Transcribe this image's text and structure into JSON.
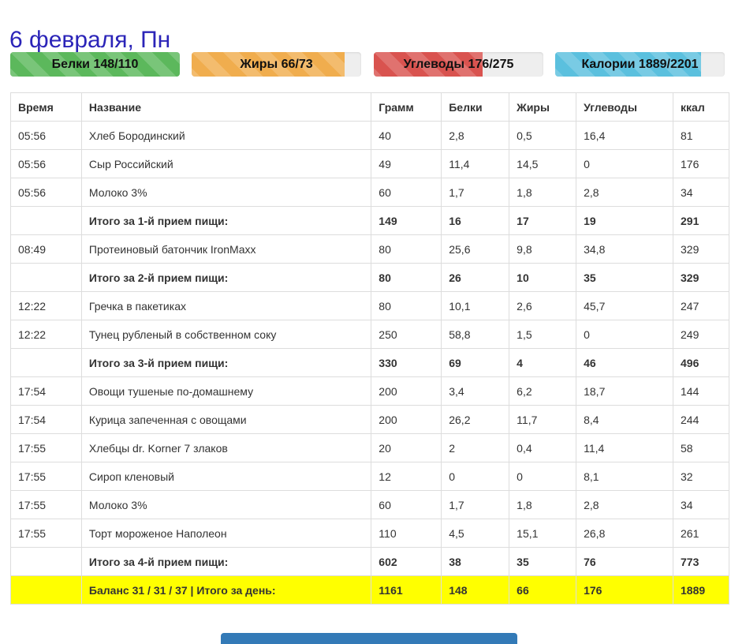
{
  "page": {
    "title": "6 февраля, Пн"
  },
  "progress": [
    {
      "label": "Белки 148/110",
      "fill": 100,
      "color": "#5cb85c"
    },
    {
      "label": "Жиры 66/73",
      "fill": 90,
      "color": "#f0ad4e"
    },
    {
      "label": "Углеводы 176/275",
      "fill": 64,
      "color": "#d9534f"
    },
    {
      "label": "Калории 1889/2201",
      "fill": 86,
      "color": "#5bc0de"
    }
  ],
  "table": {
    "headers": [
      "Время",
      "Название",
      "Грамм",
      "Белки",
      "Жиры",
      "Углеводы",
      "ккал"
    ],
    "rows": [
      {
        "type": "item",
        "cells": [
          "05:56",
          "Хлеб Бородинский",
          "40",
          "2,8",
          "0,5",
          "16,4",
          "81"
        ]
      },
      {
        "type": "item",
        "cells": [
          "05:56",
          "Сыр Российский",
          "49",
          "11,4",
          "14,5",
          "0",
          "176"
        ]
      },
      {
        "type": "item",
        "cells": [
          "05:56",
          "Молоко 3%",
          "60",
          "1,7",
          "1,8",
          "2,8",
          "34"
        ]
      },
      {
        "type": "total",
        "cells": [
          "",
          "Итого за 1-й прием пищи:",
          "149",
          "16",
          "17",
          "19",
          "291"
        ]
      },
      {
        "type": "item",
        "cells": [
          "08:49",
          "Протеиновый батончик IronMaxx",
          "80",
          "25,6",
          "9,8",
          "34,8",
          "329"
        ]
      },
      {
        "type": "total",
        "cells": [
          "",
          "Итого за 2-й прием пищи:",
          "80",
          "26",
          "10",
          "35",
          "329"
        ]
      },
      {
        "type": "item",
        "cells": [
          "12:22",
          "Гречка в пакетиках",
          "80",
          "10,1",
          "2,6",
          "45,7",
          "247"
        ]
      },
      {
        "type": "item",
        "cells": [
          "12:22",
          "Тунец рубленый в собственном соку",
          "250",
          "58,8",
          "1,5",
          "0",
          "249"
        ]
      },
      {
        "type": "total",
        "cells": [
          "",
          "Итого за 3-й прием пищи:",
          "330",
          "69",
          "4",
          "46",
          "496"
        ]
      },
      {
        "type": "item",
        "cells": [
          "17:54",
          "Овощи тушеные по-домашнему",
          "200",
          "3,4",
          "6,2",
          "18,7",
          "144"
        ]
      },
      {
        "type": "item",
        "cells": [
          "17:54",
          "Курица запеченная с овощами",
          "200",
          "26,2",
          "11,7",
          "8,4",
          "244"
        ]
      },
      {
        "type": "item",
        "cells": [
          "17:55",
          "Хлебцы dr. Korner 7 злаков",
          "20",
          "2",
          "0,4",
          "11,4",
          "58"
        ]
      },
      {
        "type": "item",
        "cells": [
          "17:55",
          "Сироп кленовый",
          "12",
          "0",
          "0",
          "8,1",
          "32"
        ]
      },
      {
        "type": "item",
        "cells": [
          "17:55",
          "Молоко 3%",
          "60",
          "1,7",
          "1,8",
          "2,8",
          "34"
        ]
      },
      {
        "type": "item",
        "cells": [
          "17:55",
          "Торт мороженое Наполеон",
          "110",
          "4,5",
          "15,1",
          "26,8",
          "261"
        ]
      },
      {
        "type": "total",
        "cells": [
          "",
          "Итого за 4-й прием пищи:",
          "602",
          "38",
          "35",
          "76",
          "773"
        ]
      },
      {
        "type": "balance",
        "cells": [
          "",
          "Баланс 31 / 31 / 37 | Итого за день:",
          "1161",
          "148",
          "66",
          "176",
          "1889"
        ]
      }
    ]
  }
}
